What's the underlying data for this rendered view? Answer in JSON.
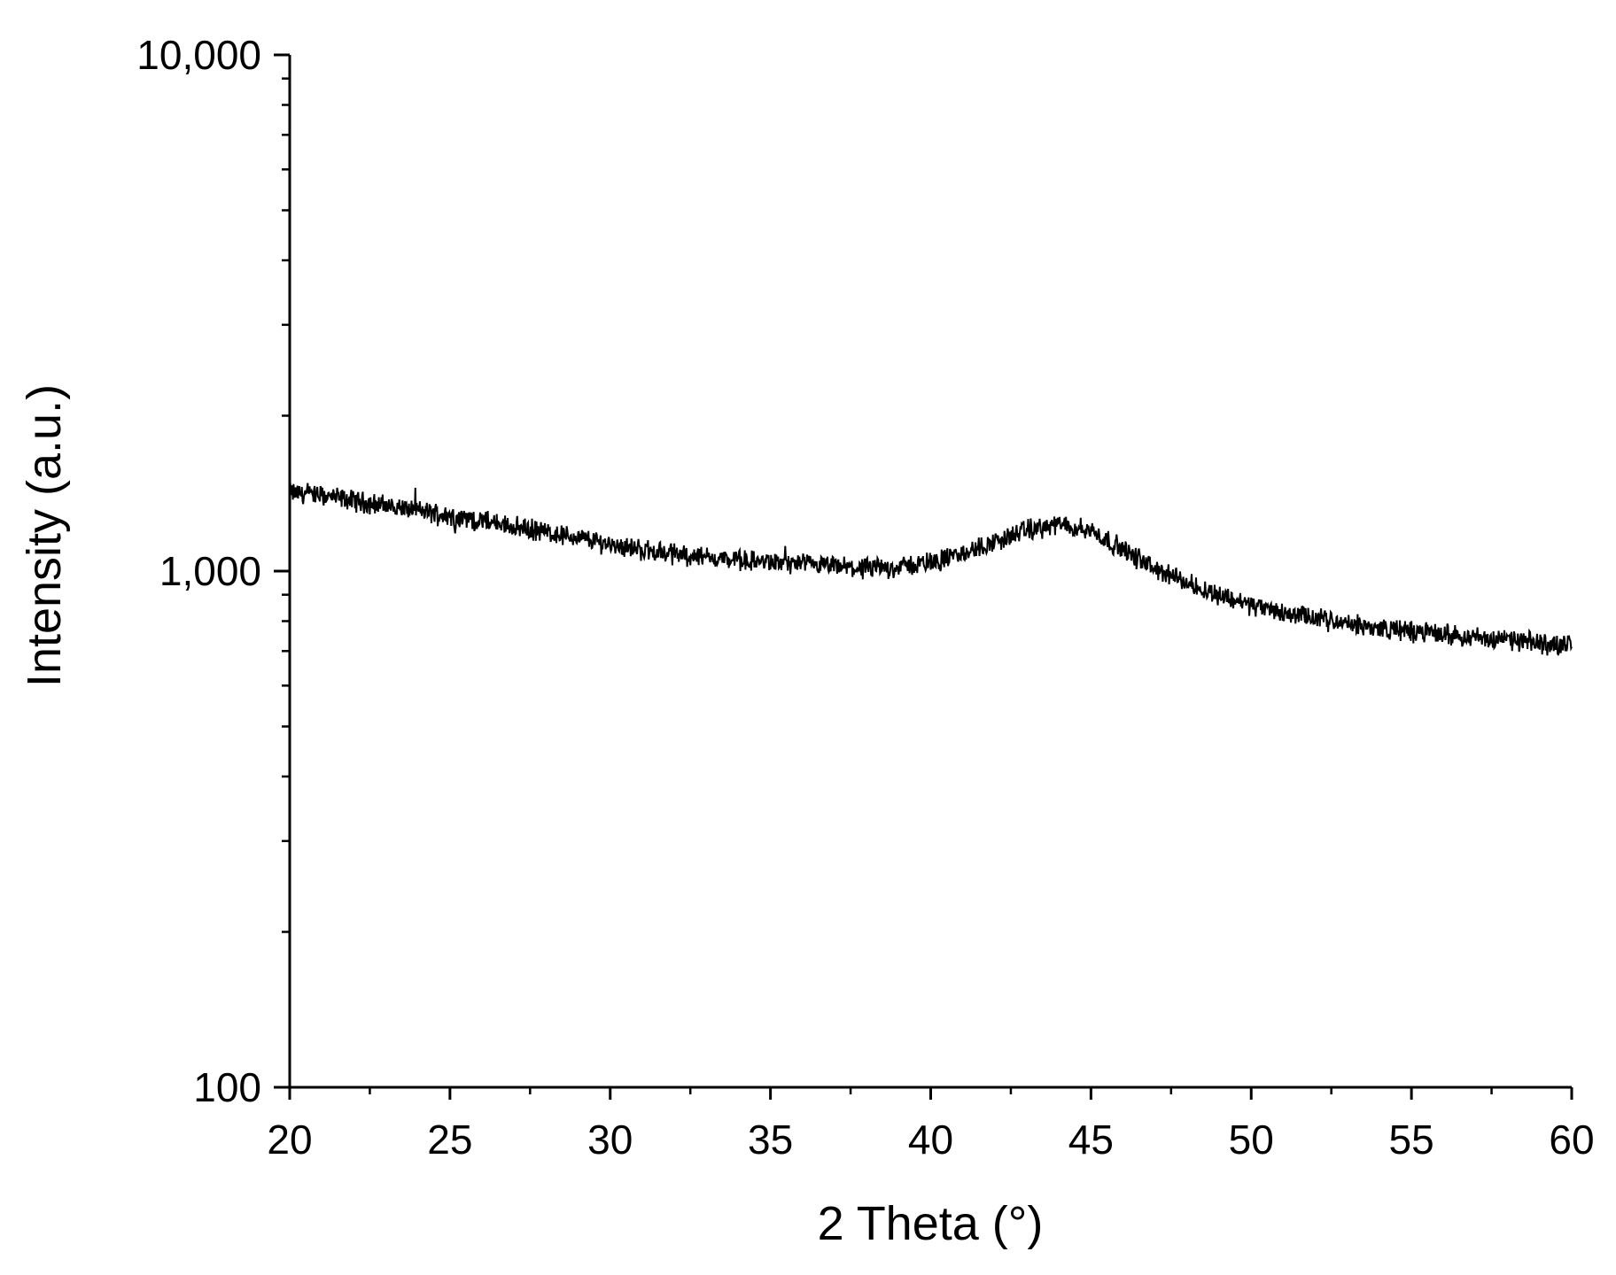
{
  "chart_data": {
    "type": "line",
    "title": "",
    "xlabel": "2 Theta (°)",
    "ylabel": "Intensity (a.u.)",
    "xlim": [
      20,
      60
    ],
    "ylim": [
      100,
      10000
    ],
    "y_scale": "log",
    "grid": false,
    "legend": "none",
    "x_ticks": [
      20,
      25,
      30,
      35,
      40,
      45,
      50,
      55,
      60
    ],
    "x_tick_labels": [
      "20",
      "25",
      "30",
      "35",
      "40",
      "45",
      "50",
      "55",
      "60"
    ],
    "y_ticks": [
      100,
      1000,
      10000
    ],
    "y_tick_labels": [
      "100",
      "1,000",
      "10,000"
    ],
    "series": [
      {
        "color": "#000000",
        "x": [
          20,
          21,
          22,
          23,
          24,
          25,
          26,
          27,
          28,
          29,
          30,
          31,
          32,
          33,
          34,
          35,
          36,
          37,
          38,
          39,
          40,
          41,
          42,
          43,
          44,
          45,
          46,
          47,
          48,
          49,
          50,
          51,
          52,
          53,
          54,
          55,
          56,
          57,
          58,
          59,
          60
        ],
        "y": [
          1420,
          1400,
          1370,
          1340,
          1310,
          1280,
          1250,
          1220,
          1190,
          1160,
          1130,
          1100,
          1080,
          1065,
          1050,
          1040,
          1030,
          1020,
          1010,
          1020,
          1040,
          1080,
          1140,
          1200,
          1230,
          1200,
          1100,
          1010,
          950,
          900,
          860,
          830,
          810,
          790,
          775,
          765,
          755,
          745,
          735,
          725,
          720
        ]
      }
    ]
  }
}
